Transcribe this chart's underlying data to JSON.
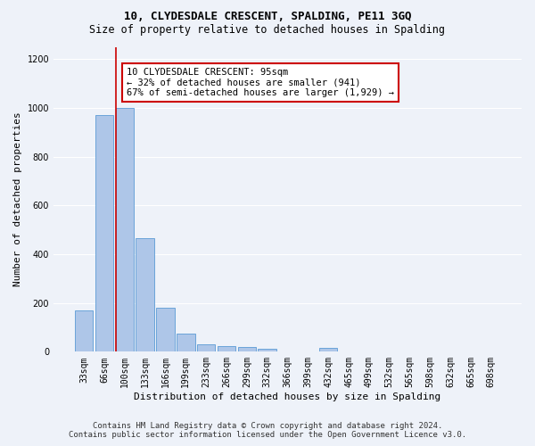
{
  "title": "10, CLYDESDALE CRESCENT, SPALDING, PE11 3GQ",
  "subtitle": "Size of property relative to detached houses in Spalding",
  "xlabel": "Distribution of detached houses by size in Spalding",
  "ylabel": "Number of detached properties",
  "footer_line1": "Contains HM Land Registry data © Crown copyright and database right 2024.",
  "footer_line2": "Contains public sector information licensed under the Open Government Licence v3.0.",
  "annotation_title": "10 CLYDESDALE CRESCENT: 95sqm",
  "annotation_line2": "← 32% of detached houses are smaller (941)",
  "annotation_line3": "67% of semi-detached houses are larger (1,929) →",
  "categories": [
    "33sqm",
    "66sqm",
    "100sqm",
    "133sqm",
    "166sqm",
    "199sqm",
    "233sqm",
    "266sqm",
    "299sqm",
    "332sqm",
    "366sqm",
    "399sqm",
    "432sqm",
    "465sqm",
    "499sqm",
    "532sqm",
    "565sqm",
    "598sqm",
    "632sqm",
    "665sqm",
    "698sqm"
  ],
  "values": [
    170,
    970,
    1000,
    465,
    180,
    75,
    30,
    22,
    20,
    12,
    0,
    0,
    15,
    0,
    0,
    0,
    0,
    0,
    0,
    0,
    0
  ],
  "bar_color": "#aec6e8",
  "bar_edge_color": "#5b9bd5",
  "vline_color": "#cc0000",
  "vline_x": 1.55,
  "annotation_box_color": "#cc0000",
  "background_color": "#eef2f9",
  "ylim": [
    0,
    1250
  ],
  "yticks": [
    0,
    200,
    400,
    600,
    800,
    1000,
    1200
  ],
  "title_fontsize": 9,
  "subtitle_fontsize": 8.5,
  "ylabel_fontsize": 8,
  "xlabel_fontsize": 8,
  "tick_fontsize": 7,
  "ann_fontsize": 7.5,
  "footer_fontsize": 6.5
}
